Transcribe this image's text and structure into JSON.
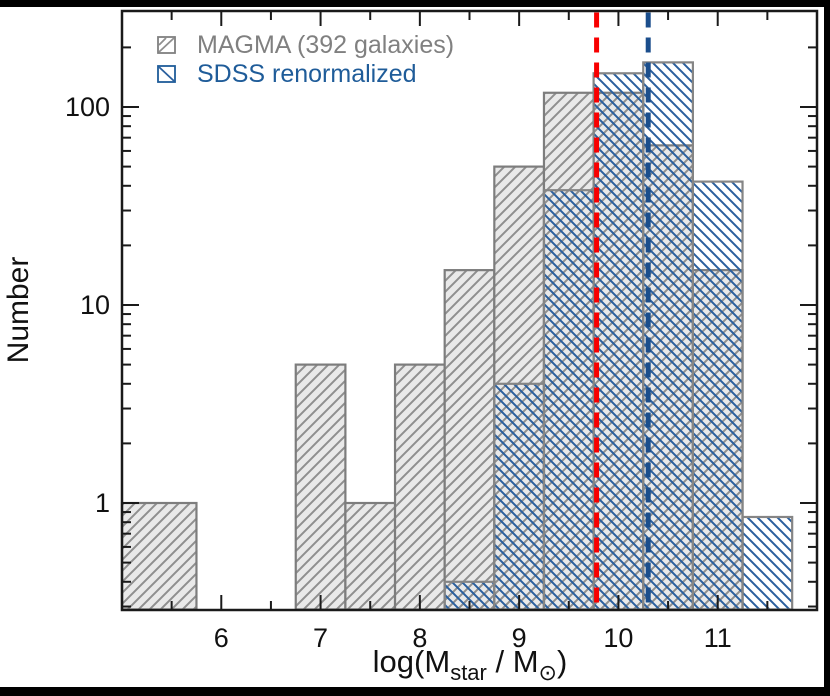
{
  "figure": {
    "background": "#000000",
    "canvas_color": "#ffffff",
    "frame_color": "#1a1a1a"
  },
  "legend": {
    "items": [
      {
        "label": "MAGMA (392 galaxies)",
        "text_color": "#808080",
        "border_color": "#808080",
        "hatch_color": "#8f8f8f",
        "hatch": "/"
      },
      {
        "label": "SDSS renormalized",
        "text_color": "#1f5c99",
        "border_color": "#1f5c99",
        "hatch_color": "#2a5f9e",
        "hatch": "\\"
      }
    ]
  },
  "axes": {
    "ylabel": "Number",
    "xlabel_parts": {
      "prefix": "log(M",
      "sub1": "star",
      "mid": " / M",
      "sub2": "⊙",
      "suffix": ")"
    },
    "x_major_ticks": [
      6,
      7,
      8,
      9,
      10,
      11
    ],
    "x_minor_ticks": [
      5.5,
      6.5,
      7.5,
      8.5,
      9.5,
      10.5,
      11.5
    ],
    "y_major_ticks": [
      {
        "value": 1,
        "label": "1"
      },
      {
        "value": 10,
        "label": "10"
      },
      {
        "value": 100,
        "label": "100"
      }
    ],
    "y_minor_ticks": [
      0.3,
      0.4,
      0.5,
      0.6,
      0.7,
      0.8,
      0.9,
      2,
      3,
      4,
      5,
      6,
      7,
      8,
      9,
      20,
      30,
      40,
      50,
      60,
      70,
      80,
      90,
      200
    ]
  },
  "chart_data": {
    "type": "bar",
    "subtype": "step-histogram",
    "y_scale": "log",
    "x_range": [
      5.0,
      12.0
    ],
    "y_range": [
      0.29,
      305
    ],
    "bin_width": 0.5,
    "title": "",
    "xlabel": "log(M_star / M_sun)",
    "ylabel": "Number",
    "grid": false,
    "legend_position": "upper-left",
    "series": [
      {
        "name": "MAGMA (392 galaxies)",
        "total": 392,
        "hatch": "/",
        "fill": "#e9e9e9",
        "hatch_color": "#8f8f8f",
        "edge_color": "#7d7d7d",
        "bars": [
          {
            "x0": 5.0,
            "x1": 5.75,
            "n": 1
          },
          {
            "x0": 6.75,
            "x1": 7.25,
            "n": 5
          },
          {
            "x0": 7.25,
            "x1": 7.75,
            "n": 1
          },
          {
            "x0": 7.75,
            "x1": 8.25,
            "n": 5
          },
          {
            "x0": 8.25,
            "x1": 8.75,
            "n": 15
          },
          {
            "x0": 8.75,
            "x1": 9.25,
            "n": 50
          },
          {
            "x0": 9.25,
            "x1": 9.75,
            "n": 118
          },
          {
            "x0": 9.75,
            "x1": 10.25,
            "n": 118
          },
          {
            "x0": 10.25,
            "x1": 10.75,
            "n": 64
          },
          {
            "x0": 10.75,
            "x1": 11.25,
            "n": 15
          }
        ]
      },
      {
        "name": "SDSS renormalized",
        "hatch": "\\",
        "fill": "none",
        "hatch_color": "#2a5f9e",
        "edge_color": "#858585",
        "bars": [
          {
            "x0": 8.25,
            "x1": 8.75,
            "n": 0.4
          },
          {
            "x0": 8.75,
            "x1": 9.25,
            "n": 4
          },
          {
            "x0": 9.25,
            "x1": 9.75,
            "n": 38
          },
          {
            "x0": 9.75,
            "x1": 10.25,
            "n": 148
          },
          {
            "x0": 10.25,
            "x1": 10.75,
            "n": 168
          },
          {
            "x0": 10.75,
            "x1": 11.25,
            "n": 42
          },
          {
            "x0": 11.25,
            "x1": 11.75,
            "n": 0.85
          }
        ]
      }
    ],
    "vlines": [
      {
        "x": 9.78,
        "color": "#f80000",
        "style": "dashed",
        "name": "red-dashed-line"
      },
      {
        "x": 10.3,
        "color": "#1b4e8c",
        "style": "dashed",
        "name": "blue-dashed-line"
      }
    ]
  }
}
